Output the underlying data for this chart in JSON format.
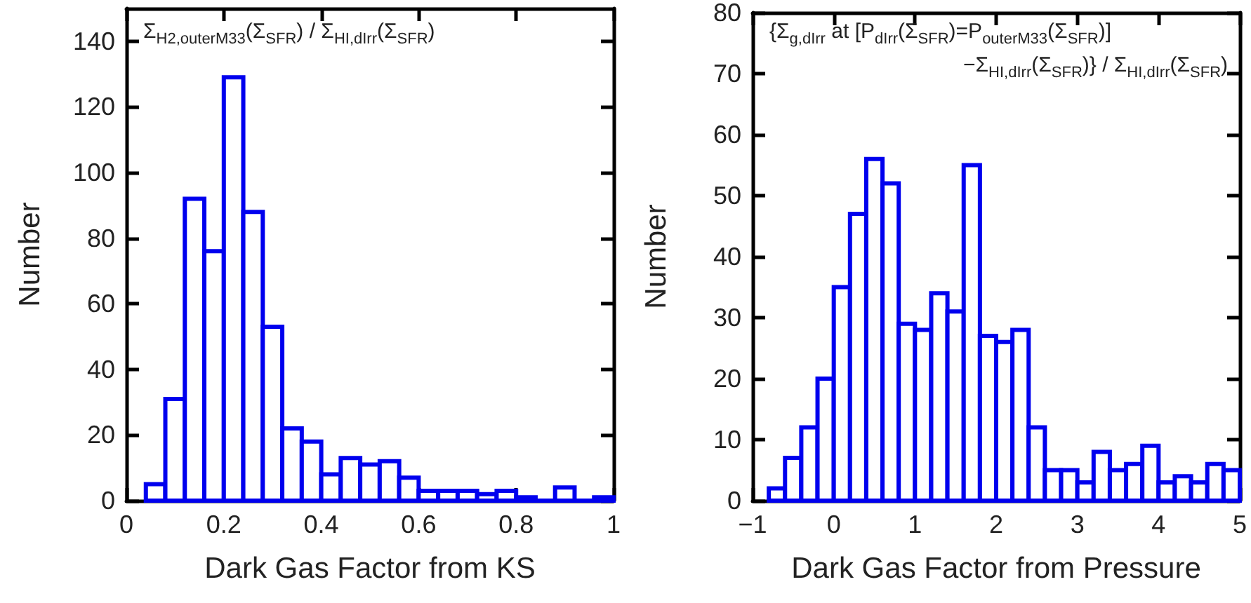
{
  "chart_data": [
    {
      "type": "histogram",
      "xlabel": "Dark Gas Factor from KS",
      "ylabel": "Number",
      "annotations": [
        "Σ$_{H2,outerM33}$(Σ$_{SFR}$) / Σ$_{HI,dIrr}$(Σ$_{SFR}$)"
      ],
      "bins": [
        0.04,
        0.08,
        0.12,
        0.16,
        0.2,
        0.24,
        0.28,
        0.32,
        0.36,
        0.4,
        0.44,
        0.48,
        0.52,
        0.56,
        0.6,
        0.64,
        0.68,
        0.72,
        0.76,
        0.8,
        0.84,
        0.88,
        0.92,
        0.96,
        1.0
      ],
      "values": [
        5,
        31,
        92,
        76,
        129,
        88,
        53,
        22,
        18,
        8,
        13,
        11,
        12,
        7,
        3,
        3,
        3,
        2,
        3,
        1,
        0,
        4,
        0,
        1
      ],
      "color": "#0000ee",
      "xlim": [
        0,
        1
      ],
      "xticks": [
        0,
        0.2,
        0.4,
        0.6,
        0.8,
        1
      ],
      "ylim": [
        0,
        150
      ],
      "yticks": [
        0,
        20,
        40,
        60,
        80,
        100,
        120,
        140
      ],
      "grid": false
    },
    {
      "type": "histogram",
      "xlabel": "Dark Gas Factor from Pressure",
      "ylabel": "Number",
      "annotations": [
        "{Σ$_{g,dIrr}$ at [P$_{dIrr}$(Σ$_{SFR}$)=P$_{outerM33}$(Σ$_{SFR}$)]",
        "−Σ$_{HI,dIrr}$(Σ$_{SFR}$)} / Σ$_{HI,dIrr}$(Σ$_{SFR}$)"
      ],
      "bins": [
        -0.8,
        -0.6,
        -0.4,
        -0.2,
        0,
        0.2,
        0.4,
        0.6,
        0.8,
        1.0,
        1.2,
        1.4,
        1.6,
        1.8,
        2.0,
        2.2,
        2.4,
        2.6,
        2.8,
        3.0,
        3.2,
        3.4,
        3.6,
        3.8,
        4.0,
        4.2,
        4.4,
        4.6,
        4.8,
        5.0
      ],
      "values": [
        2,
        7,
        12,
        20,
        35,
        47,
        56,
        52,
        29,
        28,
        34,
        31,
        55,
        27,
        26,
        28,
        12,
        5,
        5,
        3,
        8,
        5,
        6,
        9,
        3,
        4,
        3,
        6,
        5
      ],
      "color": "#0000ee",
      "xlim": [
        -1,
        5
      ],
      "xticks": [
        {
          "value": -1,
          "label": "−1"
        },
        0,
        1,
        2,
        3,
        4,
        5
      ],
      "ylim": [
        0,
        80
      ],
      "yticks": [
        0,
        10,
        20,
        30,
        40,
        50,
        60,
        70,
        80
      ],
      "grid": false
    }
  ]
}
